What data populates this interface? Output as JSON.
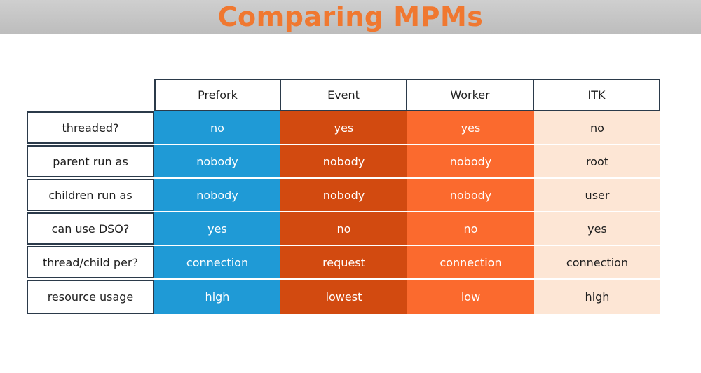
{
  "title": "Comparing MPMs",
  "columns": [
    "Prefork",
    "Event",
    "Worker",
    "ITK"
  ],
  "rows": [
    {
      "label": "threaded?",
      "values": [
        "no",
        "yes",
        "yes",
        "no"
      ]
    },
    {
      "label": "parent run as",
      "values": [
        "nobody",
        "nobody",
        "nobody",
        "root"
      ]
    },
    {
      "label": "children run as",
      "values": [
        "nobody",
        "nobody",
        "nobody",
        "user"
      ]
    },
    {
      "label": "can use DSO?",
      "values": [
        "yes",
        "no",
        "no",
        "yes"
      ]
    },
    {
      "label": "thread/child per?",
      "values": [
        "connection",
        "request",
        "connection",
        "connection"
      ]
    },
    {
      "label": "resource usage",
      "values": [
        "high",
        "lowest",
        "low",
        "high"
      ]
    }
  ],
  "colors": {
    "title": "#f07830",
    "prefork": "#1f9ad6",
    "event": "#d24a10",
    "worker": "#fb6a2e",
    "itk": "#fde6d5",
    "border": "#2b3a4a"
  }
}
